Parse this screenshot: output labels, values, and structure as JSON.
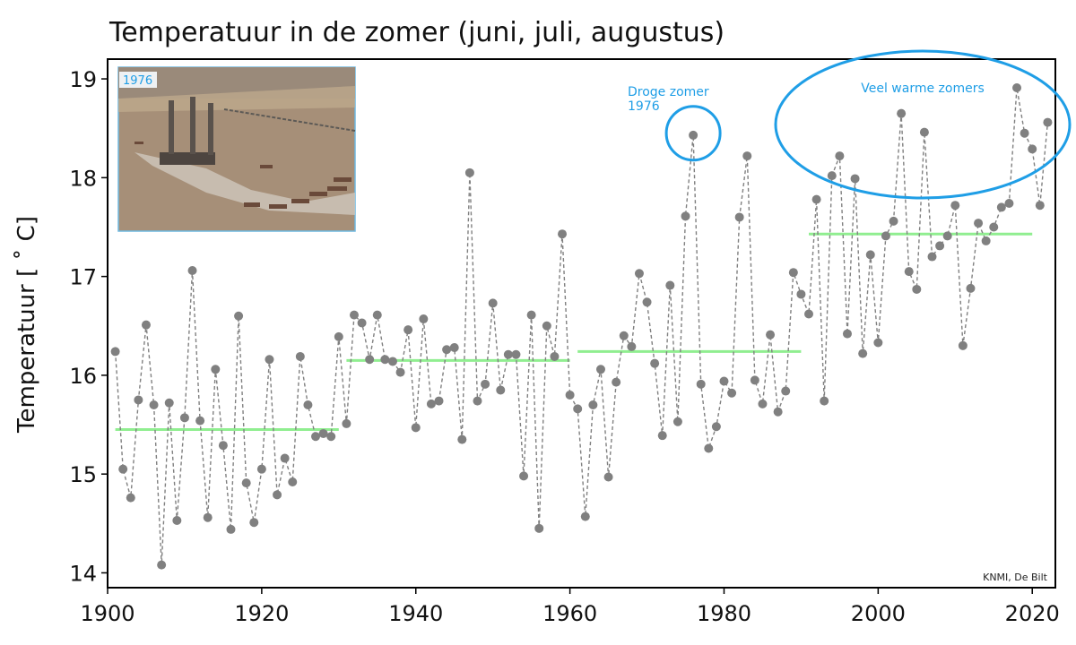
{
  "chart_data": {
    "type": "line",
    "title": "Temperatuur in de zomer (juni, juli, augustus)",
    "ylabel": "Temperatuur [ ˚ C]",
    "xlabel": "",
    "xlim": [
      1900,
      2023
    ],
    "ylim": [
      13.85,
      19.2
    ],
    "x_ticks": [
      1900,
      1920,
      1940,
      1960,
      1980,
      2000,
      2020
    ],
    "y_ticks": [
      14,
      15,
      16,
      17,
      18,
      19
    ],
    "grid": false,
    "series": [
      {
        "color": "#808080",
        "line_style": "dashed",
        "x": [
          1901,
          1902,
          1903,
          1904,
          1905,
          1906,
          1907,
          1908,
          1909,
          1910,
          1911,
          1912,
          1913,
          1914,
          1915,
          1916,
          1917,
          1918,
          1919,
          1920,
          1921,
          1922,
          1923,
          1924,
          1925,
          1926,
          1927,
          1928,
          1929,
          1930,
          1931,
          1932,
          1933,
          1934,
          1935,
          1936,
          1937,
          1938,
          1939,
          1940,
          1941,
          1942,
          1943,
          1944,
          1945,
          1946,
          1947,
          1948,
          1949,
          1950,
          1951,
          1952,
          1953,
          1954,
          1955,
          1956,
          1957,
          1958,
          1959,
          1960,
          1961,
          1962,
          1963,
          1964,
          1965,
          1966,
          1967,
          1968,
          1969,
          1970,
          1971,
          1972,
          1973,
          1974,
          1975,
          1976,
          1977,
          1978,
          1979,
          1980,
          1981,
          1982,
          1983,
          1984,
          1985,
          1986,
          1987,
          1988,
          1989,
          1990,
          1991,
          1992,
          1993,
          1994,
          1995,
          1996,
          1997,
          1998,
          1999,
          2000,
          2001,
          2002,
          2003,
          2004,
          2005,
          2006,
          2007,
          2008,
          2009,
          2010,
          2011,
          2012,
          2013,
          2014,
          2015,
          2016,
          2017,
          2018,
          2019,
          2020,
          2021,
          2022
        ],
        "values": [
          16.24,
          15.05,
          14.76,
          15.75,
          16.51,
          15.7,
          14.08,
          15.72,
          14.53,
          15.57,
          17.06,
          15.54,
          14.56,
          16.06,
          15.29,
          14.44,
          16.6,
          14.91,
          14.51,
          15.05,
          16.16,
          14.79,
          15.16,
          14.92,
          16.19,
          15.7,
          15.38,
          15.41,
          15.38,
          16.39,
          15.51,
          16.61,
          16.53,
          16.16,
          16.61,
          16.16,
          16.14,
          16.03,
          16.46,
          15.47,
          16.57,
          15.71,
          15.74,
          16.26,
          16.28,
          15.35,
          18.05,
          15.74,
          15.91,
          16.73,
          15.85,
          16.21,
          16.21,
          14.98,
          16.61,
          14.45,
          16.5,
          16.19,
          17.43,
          15.8,
          15.66,
          14.57,
          15.7,
          16.06,
          14.97,
          15.93,
          16.4,
          16.29,
          17.03,
          16.74,
          16.12,
          15.39,
          16.91,
          15.53,
          17.61,
          18.43,
          15.91,
          15.26,
          15.48,
          15.94,
          15.82,
          17.6,
          18.22,
          15.95,
          15.71,
          16.41,
          15.63,
          15.84,
          17.04,
          16.82,
          16.62,
          17.78,
          15.74,
          18.02,
          18.22,
          16.42,
          17.99,
          16.22,
          17.22,
          16.33,
          17.41,
          17.56,
          18.65,
          17.05,
          16.87,
          18.46,
          17.2,
          17.31,
          17.41,
          17.72,
          16.3,
          16.88,
          17.54,
          17.36,
          17.5,
          17.7,
          17.74,
          18.91,
          18.45,
          18.29,
          17.72,
          18.56
        ]
      }
    ],
    "averages": [
      {
        "from": 1901,
        "to": 1930,
        "value": 15.45,
        "color": "#90ee90"
      },
      {
        "from": 1931,
        "to": 1960,
        "value": 16.15,
        "color": "#90ee90"
      },
      {
        "from": 1961,
        "to": 1990,
        "value": 16.24,
        "color": "#90ee90"
      },
      {
        "from": 1991,
        "to": 2020,
        "value": 17.43,
        "color": "#90ee90"
      }
    ],
    "annotations": [
      {
        "text_lines": [
          "Droge zomer",
          "1976"
        ],
        "circle_center": [
          1976,
          18.45
        ],
        "color": "#1f9ee6"
      },
      {
        "text_lines": [
          "Veel warme zomers"
        ],
        "circle_center": [
          2006,
          18.45
        ],
        "color": "#1f9ee6"
      }
    ],
    "inset": {
      "label": "1976"
    },
    "credit": "KNMI, De Bilt"
  }
}
